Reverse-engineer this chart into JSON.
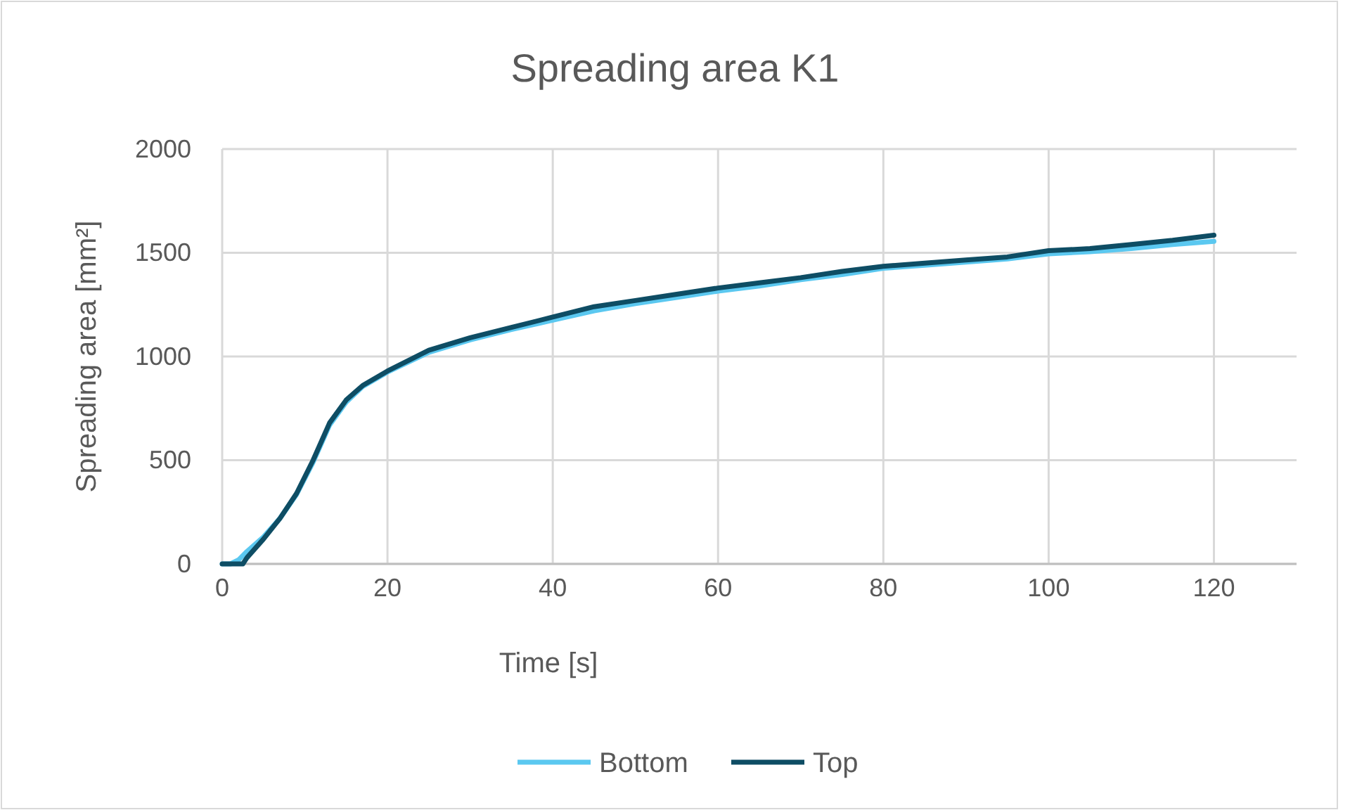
{
  "chart_data": {
    "type": "line",
    "title": "Spreading area K1",
    "xlabel": "Time [s]",
    "ylabel": "Spreading area [mm²]",
    "xlim": [
      0,
      130
    ],
    "xticks": [
      0,
      20,
      40,
      60,
      80,
      100,
      120
    ],
    "ylim": [
      0,
      2000
    ],
    "yticks": [
      0,
      500,
      1000,
      1500,
      2000
    ],
    "grid": true,
    "legend": "bottom",
    "marker": "none",
    "line_style": "solid",
    "series": [
      {
        "name": "Bottom",
        "color": "#5bc8f0",
        "x": [
          0,
          1,
          2,
          3,
          5,
          7,
          9,
          11,
          13,
          15,
          17,
          20,
          25,
          30,
          35,
          40,
          45,
          50,
          55,
          60,
          65,
          70,
          75,
          80,
          85,
          90,
          95,
          100,
          105,
          110,
          115,
          120
        ],
        "values": [
          0,
          0,
          20,
          60,
          130,
          220,
          335,
          490,
          670,
          780,
          855,
          925,
          1020,
          1080,
          1130,
          1175,
          1220,
          1255,
          1285,
          1315,
          1340,
          1370,
          1395,
          1425,
          1440,
          1455,
          1470,
          1495,
          1505,
          1520,
          1540,
          1555
        ]
      },
      {
        "name": "Top",
        "color": "#0e4d64",
        "x": [
          0,
          1,
          2,
          2.5,
          3,
          5,
          7,
          9,
          11,
          13,
          15,
          17,
          20,
          25,
          30,
          35,
          40,
          45,
          50,
          55,
          60,
          65,
          70,
          75,
          80,
          85,
          90,
          95,
          100,
          105,
          110,
          115,
          120
        ],
        "values": [
          0,
          0,
          0,
          0,
          30,
          120,
          220,
          340,
          500,
          680,
          790,
          860,
          930,
          1030,
          1090,
          1140,
          1190,
          1240,
          1270,
          1300,
          1330,
          1355,
          1380,
          1410,
          1435,
          1450,
          1465,
          1480,
          1510,
          1520,
          1540,
          1560,
          1585
        ]
      }
    ]
  }
}
